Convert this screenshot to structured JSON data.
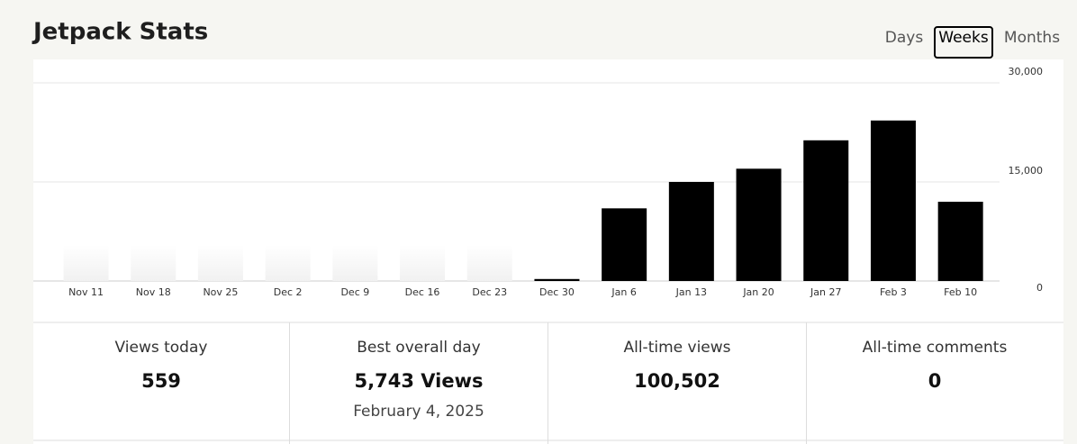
{
  "header": {
    "title": "Jetpack Stats",
    "tabs": [
      {
        "label": "Days"
      },
      {
        "label": "Weeks",
        "selected": true
      },
      {
        "label": "Months"
      }
    ]
  },
  "chart_data": {
    "type": "bar",
    "categories": [
      "Nov 11",
      "Nov 18",
      "Nov 25",
      "Dec 2",
      "Dec 9",
      "Dec 16",
      "Dec 23",
      "Dec 30",
      "Jan 6",
      "Jan 13",
      "Jan 20",
      "Jan 27",
      "Feb 3",
      "Feb 10"
    ],
    "values": [
      0,
      0,
      0,
      0,
      0,
      0,
      0,
      300,
      11000,
      15000,
      17000,
      21300,
      24300,
      12000
    ],
    "color": "#000000",
    "ylim": [
      0,
      30000
    ],
    "yticks": [
      0,
      {
        "value": 15000,
        "label": "15,000"
      },
      {
        "value": 30000,
        "label": "30,000"
      }
    ],
    "grid": true
  },
  "stats": [
    {
      "label": "Views today",
      "value": "559"
    },
    {
      "label": "Best overall day",
      "value": "5,743 Views",
      "sub": "February 4, 2025"
    },
    {
      "label": "All-time views",
      "value": "100,502"
    },
    {
      "label": "All-time comments",
      "value": "0"
    }
  ]
}
